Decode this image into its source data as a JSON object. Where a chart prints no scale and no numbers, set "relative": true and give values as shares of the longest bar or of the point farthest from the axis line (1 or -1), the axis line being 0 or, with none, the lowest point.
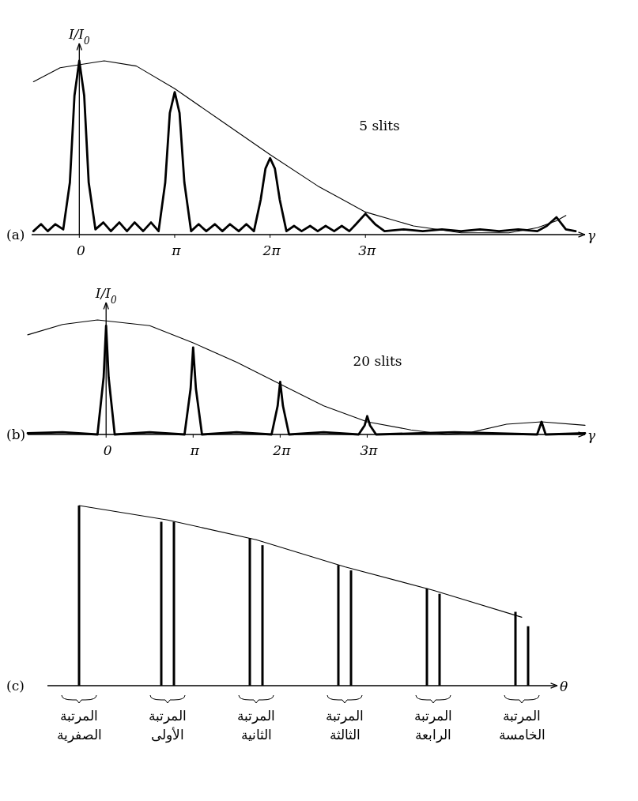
{
  "chart_data": [
    {
      "type": "line",
      "title": "(a)",
      "xlabel": "γ",
      "ylabel": "I/I$_{0}$",
      "annotations": [
        "5 slits"
      ],
      "relative": true,
      "xlim": [
        -1.57,
        16.65
      ],
      "xticks": [
        {
          "value": 0,
          "label": "0"
        },
        {
          "value": 3.14,
          "label": "π"
        },
        {
          "value": 6.28,
          "label": "2π"
        },
        {
          "value": 9.42,
          "label": "3π"
        }
      ],
      "series": [
        {
          "color": "#000000",
          "x": [
            -1.51,
            -1.26,
            -1.04,
            -0.79,
            -0.53,
            -0.31,
            -0.16,
            0,
            0.16,
            0.31,
            0.53,
            0.79,
            1.04,
            1.32,
            1.57,
            1.82,
            2.1,
            2.36,
            2.61,
            2.83,
            2.98,
            3.14,
            3.3,
            3.46,
            3.68,
            3.93,
            4.18,
            4.46,
            4.71,
            4.96,
            5.25,
            5.5,
            5.75,
            5.97,
            6.13,
            6.28,
            6.44,
            6.6,
            6.82,
            7.07,
            7.32,
            7.6,
            7.85,
            8.11,
            8.39,
            8.64,
            8.89,
            9.11,
            9.42,
            9.74,
            10.05,
            10.68,
            11.31,
            11.94,
            12.57,
            13.19,
            13.82,
            14.45,
            15.08,
            15.39,
            15.71,
            16.02,
            16.34
          ],
          "values": [
            0.02,
            0.06,
            0.02,
            0.06,
            0.03,
            0.3,
            0.8,
            1.0,
            0.8,
            0.3,
            0.03,
            0.07,
            0.02,
            0.07,
            0.02,
            0.07,
            0.02,
            0.07,
            0.02,
            0.3,
            0.7,
            0.82,
            0.7,
            0.3,
            0.02,
            0.06,
            0.02,
            0.06,
            0.02,
            0.06,
            0.02,
            0.06,
            0.02,
            0.2,
            0.38,
            0.44,
            0.38,
            0.2,
            0.02,
            0.05,
            0.02,
            0.05,
            0.02,
            0.05,
            0.02,
            0.05,
            0.02,
            0.06,
            0.12,
            0.06,
            0.02,
            0.03,
            0.02,
            0.03,
            0.02,
            0.03,
            0.02,
            0.03,
            0.02,
            0.05,
            0.1,
            0.03,
            0.02
          ]
        },
        {
          "color": "#000000",
          "x": [
            -1.51,
            -0.63,
            0.82,
            1.88,
            3.14,
            4.71,
            6.28,
            7.85,
            9.42,
            11.0,
            12.57,
            14.14,
            15.08,
            15.71,
            16.02
          ],
          "values": [
            0.88,
            0.96,
            1.0,
            0.97,
            0.84,
            0.65,
            0.46,
            0.28,
            0.13,
            0.05,
            0.01,
            0.01,
            0.04,
            0.08,
            0.11
          ]
        }
      ]
    },
    {
      "type": "line",
      "title": "(b)",
      "xlabel": "γ",
      "ylabel": "I/I$_{0}$",
      "annotations": [
        "20 slits"
      ],
      "relative": true,
      "xlim": [
        -2.83,
        17.28
      ],
      "xticks": [
        {
          "value": 0,
          "label": "0"
        },
        {
          "value": 3.14,
          "label": "π"
        },
        {
          "value": 6.28,
          "label": "2π"
        },
        {
          "value": 9.42,
          "label": "3π"
        }
      ],
      "series": [
        {
          "color": "#000000",
          "x": [
            -2.83,
            -1.57,
            -0.31,
            -0.09,
            0,
            0.09,
            0.31,
            1.57,
            2.83,
            3.05,
            3.14,
            3.24,
            3.46,
            4.71,
            5.97,
            6.19,
            6.28,
            6.38,
            6.6,
            7.85,
            9.11,
            9.33,
            9.42,
            9.52,
            9.74,
            12.57,
            15.55,
            15.71,
            15.86,
            17.28
          ],
          "values": [
            0.01,
            0.02,
            0.0,
            0.5,
            0.95,
            0.5,
            0.0,
            0.02,
            0.0,
            0.4,
            0.76,
            0.4,
            0.0,
            0.02,
            0.0,
            0.25,
            0.46,
            0.25,
            0.0,
            0.02,
            0.0,
            0.08,
            0.16,
            0.08,
            0.0,
            0.02,
            0.0,
            0.11,
            0.0,
            0.01
          ]
        },
        {
          "color": "#000000",
          "x": [
            -2.83,
            -1.57,
            -0.31,
            1.57,
            3.14,
            4.71,
            6.28,
            7.85,
            9.42,
            11.0,
            12.25,
            13.19,
            14.45,
            15.71,
            17.28
          ],
          "values": [
            0.87,
            0.96,
            1.0,
            0.95,
            0.8,
            0.63,
            0.44,
            0.25,
            0.11,
            0.04,
            0.0,
            0.02,
            0.09,
            0.11,
            0.08
          ]
        }
      ]
    },
    {
      "type": "bar",
      "title": "(c)",
      "xlabel": "θ",
      "relative": true,
      "categories": [
        "المرتبة الصفرية",
        "المرتبة الأولى",
        "المرتبة الثانية",
        "المرتبة الثالثة",
        "المرتبة الرابعة",
        "المرتبة الخامسة"
      ],
      "series": [
        {
          "color": "#000000",
          "values": [
            1.0,
            0.91,
            0.82,
            0.67,
            0.54,
            0.41
          ]
        },
        {
          "color": "#000000",
          "values": [
            null,
            0.91,
            0.78,
            0.64,
            0.51,
            0.33
          ]
        },
        {
          "type": "line",
          "color": "#000000",
          "values": [
            1.0,
            0.92,
            0.81,
            0.66,
            0.53,
            0.38
          ]
        }
      ]
    }
  ]
}
